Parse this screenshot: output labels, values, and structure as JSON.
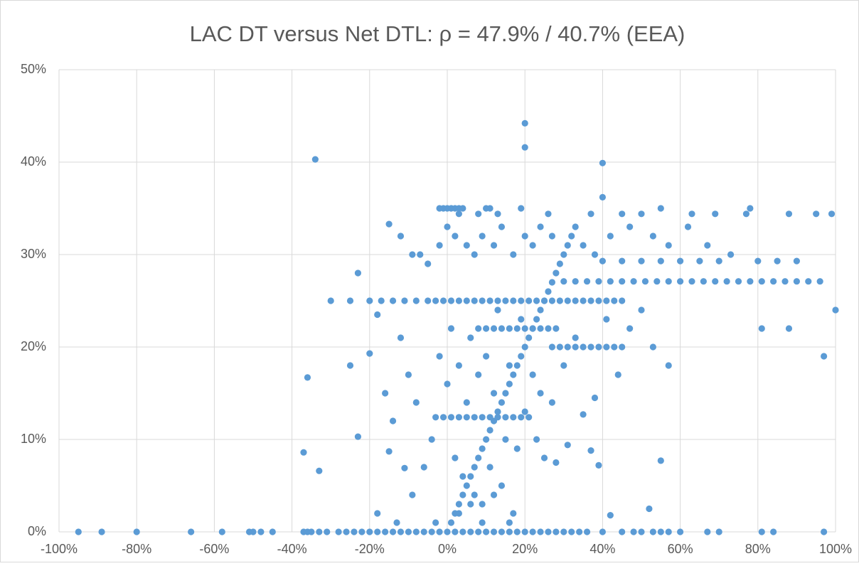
{
  "chart_data": {
    "type": "scatter",
    "title": "LAC DT versus Net DTL: ρ = 47.9% / 40.7% (EEA)",
    "color": "#5b9bd5",
    "grid": true,
    "xlim": [
      -100,
      100
    ],
    "ylim": [
      0,
      50
    ],
    "xticks": [
      {
        "value": -100,
        "label": "-100%"
      },
      {
        "value": -80,
        "label": "-80%"
      },
      {
        "value": -60,
        "label": "-60%"
      },
      {
        "value": -40,
        "label": "-40%"
      },
      {
        "value": -20,
        "label": "-20%"
      },
      {
        "value": 0,
        "label": "0%"
      },
      {
        "value": 20,
        "label": "20%"
      },
      {
        "value": 40,
        "label": "40%"
      },
      {
        "value": 60,
        "label": "60%"
      },
      {
        "value": 80,
        "label": "80%"
      },
      {
        "value": 100,
        "label": "100%"
      }
    ],
    "yticks": [
      {
        "value": 0,
        "label": "0%"
      },
      {
        "value": 10,
        "label": "10%"
      },
      {
        "value": 20,
        "label": "20%"
      },
      {
        "value": 30,
        "label": "30%"
      },
      {
        "value": 40,
        "label": "40%"
      },
      {
        "value": 50,
        "label": "50%"
      }
    ],
    "x": [
      -95,
      -89,
      -80,
      -66,
      -58,
      -51,
      -50,
      -48,
      -45,
      -37,
      -36,
      -35,
      -33,
      -31,
      -28,
      -26,
      -24,
      -22,
      -20,
      -18,
      -16,
      -14,
      -12,
      -10,
      -8,
      -6,
      -4,
      -2,
      0,
      2,
      4,
      6,
      8,
      10,
      12,
      14,
      16,
      18,
      20,
      22,
      24,
      26,
      28,
      30,
      32,
      34,
      36,
      40,
      45,
      48,
      50,
      53,
      55,
      57,
      60,
      67,
      70,
      81,
      84,
      97,
      1,
      2,
      3,
      4,
      5,
      6,
      7,
      8,
      9,
      10,
      11,
      12,
      13,
      14,
      15,
      16,
      17,
      18,
      19,
      20,
      21,
      22,
      23,
      24,
      25,
      26,
      27,
      28,
      29,
      30,
      31,
      32,
      -30,
      -25,
      -20,
      -17,
      -14,
      -11,
      -8,
      -5,
      -3,
      -1,
      1,
      3,
      5,
      7,
      9,
      11,
      13,
      15,
      17,
      19,
      21,
      23,
      25,
      27,
      29,
      31,
      33,
      35,
      37,
      39,
      41,
      43,
      45,
      30,
      33,
      36,
      39,
      42,
      45,
      48,
      51,
      54,
      57,
      60,
      63,
      66,
      69,
      72,
      75,
      78,
      81,
      84,
      87,
      90,
      93,
      96,
      27,
      29,
      31,
      33,
      35,
      37,
      39,
      41,
      43,
      45,
      8,
      10,
      12,
      14,
      16,
      18,
      20,
      22,
      24,
      26,
      28,
      -3,
      -1,
      1,
      3,
      5,
      7,
      9,
      11,
      13,
      15,
      17,
      19,
      21,
      -2,
      -1,
      0,
      1,
      2,
      3,
      4,
      10,
      11,
      19,
      55,
      78,
      3,
      8,
      13,
      26,
      37,
      45,
      50,
      63,
      69,
      77,
      88,
      95,
      99,
      40,
      45,
      50,
      55,
      60,
      65,
      70,
      80,
      85,
      90,
      -34,
      20,
      20,
      40,
      40,
      -36,
      -37,
      -33,
      -23,
      -25,
      -23,
      100,
      97,
      88,
      81,
      55,
      52,
      42,
      39,
      37,
      31,
      -15,
      -12,
      -9,
      -7,
      -5,
      -2,
      0,
      2,
      5,
      7,
      9,
      12,
      14,
      17,
      20,
      22,
      24,
      27,
      33,
      35,
      38,
      42,
      47,
      53,
      57,
      62,
      67,
      73,
      -20,
      -18,
      -16,
      -14,
      -12,
      -10,
      -8,
      -6,
      -4,
      -2,
      0,
      1,
      2,
      3,
      4,
      5,
      6,
      7,
      8,
      9,
      10,
      11,
      12,
      13,
      14,
      15,
      16,
      17,
      18,
      19,
      20,
      22,
      23,
      24,
      25,
      27,
      28,
      30,
      33,
      35,
      38,
      41,
      44,
      47,
      50,
      53,
      57,
      -18,
      -13,
      -9,
      -15,
      -11,
      -3,
      3,
      6,
      9,
      12,
      16
    ],
    "values": [
      0,
      0,
      0,
      0,
      0,
      0,
      0,
      0,
      0,
      0,
      0,
      0,
      0,
      0,
      0,
      0,
      0,
      0,
      0,
      0,
      0,
      0,
      0,
      0,
      0,
      0,
      0,
      0,
      0,
      0,
      0,
      0,
      0,
      0,
      0,
      0,
      0,
      0,
      0,
      0,
      0,
      0,
      0,
      0,
      0,
      0,
      0,
      0,
      0,
      0,
      0,
      0,
      0,
      0,
      0,
      0,
      0,
      0,
      0,
      0,
      1,
      2,
      3,
      4,
      5,
      6,
      7,
      8,
      9,
      10,
      11,
      12,
      13,
      14,
      15,
      16,
      17,
      18,
      19,
      20,
      21,
      22,
      23,
      24,
      25,
      26,
      27,
      28,
      29,
      30,
      31,
      32,
      25,
      25,
      25,
      25,
      25,
      25,
      25,
      25,
      25,
      25,
      25,
      25,
      25,
      25,
      25,
      25,
      25,
      25,
      25,
      25,
      25,
      25,
      25,
      25,
      25,
      25,
      25,
      25,
      25,
      25,
      25,
      25,
      25,
      27.1,
      27.1,
      27.1,
      27.1,
      27.1,
      27.1,
      27.1,
      27.1,
      27.1,
      27.1,
      27.1,
      27.1,
      27.1,
      27.1,
      27.1,
      27.1,
      27.1,
      27.1,
      27.1,
      27.1,
      27.1,
      27.1,
      27.1,
      20,
      20,
      20,
      20,
      20,
      20,
      20,
      20,
      20,
      20,
      22,
      22,
      22,
      22,
      22,
      22,
      22,
      22,
      22,
      22,
      22,
      12.4,
      12.4,
      12.4,
      12.4,
      12.4,
      12.4,
      12.4,
      12.4,
      12.4,
      12.4,
      12.4,
      12.4,
      12.4,
      35,
      35,
      35,
      35,
      35,
      35,
      35,
      35,
      35,
      35,
      35,
      35,
      34.4,
      34.4,
      34.4,
      34.4,
      34.4,
      34.4,
      34.4,
      34.4,
      34.4,
      34.4,
      34.4,
      34.4,
      34.4,
      29.3,
      29.3,
      29.3,
      29.3,
      29.3,
      29.3,
      29.3,
      29.3,
      29.3,
      29.3,
      40.3,
      44.2,
      41.6,
      39.9,
      36.2,
      16.7,
      8.6,
      6.6,
      10.3,
      18,
      28,
      24,
      19,
      22,
      22,
      7.7,
      2.5,
      1.8,
      7.2,
      8.8,
      9.4,
      33.3,
      32,
      30,
      30,
      29,
      31,
      33,
      32,
      31,
      30,
      32,
      31,
      33,
      30,
      32,
      31,
      33,
      32,
      33,
      31,
      30,
      32,
      33,
      32,
      31,
      33,
      31,
      30,
      19.3,
      23.5,
      15,
      12,
      21,
      17,
      14,
      7,
      10,
      19,
      16,
      22,
      8,
      18,
      6,
      14,
      21,
      4,
      17,
      3,
      19,
      7,
      15,
      24,
      5,
      10,
      18,
      2,
      9,
      23,
      13,
      17,
      10,
      15,
      8,
      14,
      7.5,
      18,
      21,
      12.7,
      14.5,
      23,
      17,
      22,
      24,
      20,
      18,
      2,
      1,
      4,
      8.7,
      6.9,
      1,
      2,
      3,
      1,
      4,
      1
    ]
  }
}
